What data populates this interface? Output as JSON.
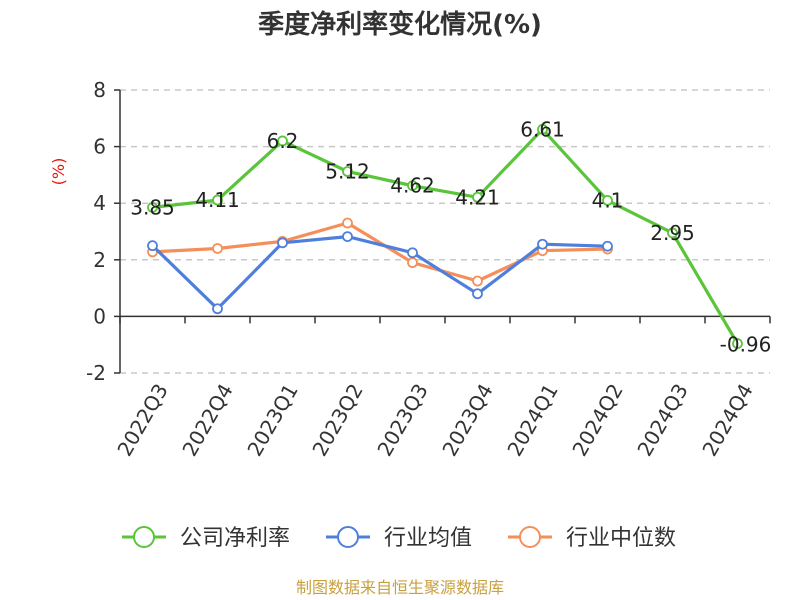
{
  "chart_data": {
    "type": "line",
    "title": "季度净利率变化情况(%)",
    "ylabel": "(%)",
    "xlabel": "",
    "ylim": [
      -2,
      8
    ],
    "yticks": [
      -2,
      0,
      2,
      4,
      6,
      8
    ],
    "grid": true,
    "legend_position": "bottom",
    "categories": [
      "2022Q3",
      "2022Q4",
      "2023Q1",
      "2023Q2",
      "2023Q3",
      "2023Q4",
      "2024Q1",
      "2024Q2",
      "2024Q3",
      "2024Q4"
    ],
    "series": [
      {
        "name": "公司净利率",
        "color": "#5ac43a",
        "values": [
          3.85,
          4.11,
          6.2,
          5.12,
          4.62,
          4.21,
          6.61,
          4.1,
          2.95,
          -0.96
        ],
        "labels": [
          "3.85",
          "4.11",
          "6.2",
          "5.12",
          "4.62",
          "4.21",
          "6.61",
          "4.1",
          "2.95",
          "-0.96"
        ]
      },
      {
        "name": "行业均值",
        "color": "#4f7fdc",
        "values": [
          2.5,
          0.27,
          2.6,
          2.82,
          2.25,
          0.8,
          2.55,
          2.48,
          null,
          null
        ]
      },
      {
        "name": "行业中位数",
        "color": "#f58f5a",
        "values": [
          2.28,
          2.4,
          2.65,
          3.3,
          1.9,
          1.25,
          2.32,
          2.38,
          null,
          null
        ]
      }
    ]
  },
  "footer": {
    "source": "制图数据来自恒生聚源数据库"
  }
}
